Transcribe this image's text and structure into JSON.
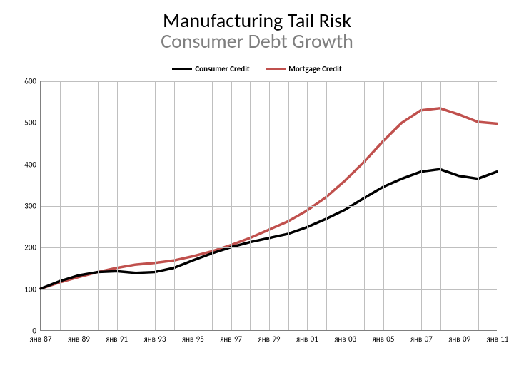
{
  "title_line1": "Manufacturing Tail Risk",
  "title_line2": "Consumer Debt Growth",
  "legend": {
    "series1": {
      "label": "Consumer Credit",
      "color": "#000000",
      "width": 3
    },
    "series2": {
      "label": "Mortgage Credit",
      "color": "#c0504d",
      "width": 3
    }
  },
  "chart": {
    "type": "line",
    "background_color": "#ffffff",
    "grid_color": "#bfbfbf",
    "axis_color": "#808080",
    "label_fontsize": 11,
    "title_fontsize": 28,
    "x": {
      "min": 0,
      "max": 24,
      "major_ticks": [
        0,
        2,
        4,
        6,
        8,
        10,
        12,
        14,
        16,
        18,
        20,
        22,
        24
      ],
      "major_labels": [
        "янв-87",
        "янв-89",
        "янв-91",
        "янв-93",
        "янв-95",
        "янв-97",
        "янв-99",
        "янв-01",
        "янв-03",
        "янв-05",
        "янв-07",
        "янв-09",
        "янв-11"
      ],
      "minor_ticks": [
        1,
        3,
        5,
        7,
        9,
        11,
        13,
        15,
        17,
        19,
        21,
        23
      ]
    },
    "y": {
      "min": 0,
      "max": 600,
      "ticks": [
        0,
        100,
        200,
        300,
        400,
        500,
        600
      ],
      "labels": [
        "0",
        "100",
        "200",
        "300",
        "400",
        "500",
        "600"
      ]
    },
    "series": {
      "consumer_credit": {
        "color": "#000000",
        "width": 3.5,
        "points": [
          [
            0,
            100
          ],
          [
            1,
            118
          ],
          [
            2,
            132
          ],
          [
            3,
            140
          ],
          [
            4,
            142
          ],
          [
            5,
            138
          ],
          [
            6,
            140
          ],
          [
            7,
            150
          ],
          [
            8,
            168
          ],
          [
            9,
            185
          ],
          [
            10,
            200
          ],
          [
            11,
            212
          ],
          [
            12,
            222
          ],
          [
            13,
            232
          ],
          [
            14,
            248
          ],
          [
            15,
            268
          ],
          [
            16,
            290
          ],
          [
            17,
            318
          ],
          [
            18,
            345
          ],
          [
            19,
            365
          ],
          [
            20,
            382
          ],
          [
            21,
            388
          ],
          [
            22,
            372
          ],
          [
            23,
            365
          ],
          [
            24,
            382
          ]
        ]
      },
      "mortgage_credit": {
        "color": "#c0504d",
        "width": 3.5,
        "points": [
          [
            0,
            100
          ],
          [
            1,
            115
          ],
          [
            2,
            128
          ],
          [
            3,
            140
          ],
          [
            4,
            150
          ],
          [
            5,
            158
          ],
          [
            6,
            162
          ],
          [
            7,
            168
          ],
          [
            8,
            178
          ],
          [
            9,
            190
          ],
          [
            10,
            205
          ],
          [
            11,
            222
          ],
          [
            12,
            242
          ],
          [
            13,
            262
          ],
          [
            14,
            288
          ],
          [
            15,
            320
          ],
          [
            16,
            360
          ],
          [
            17,
            405
          ],
          [
            18,
            455
          ],
          [
            19,
            500
          ],
          [
            20,
            530
          ],
          [
            21,
            535
          ],
          [
            22,
            520
          ],
          [
            23,
            502
          ],
          [
            24,
            498
          ]
        ]
      }
    }
  }
}
